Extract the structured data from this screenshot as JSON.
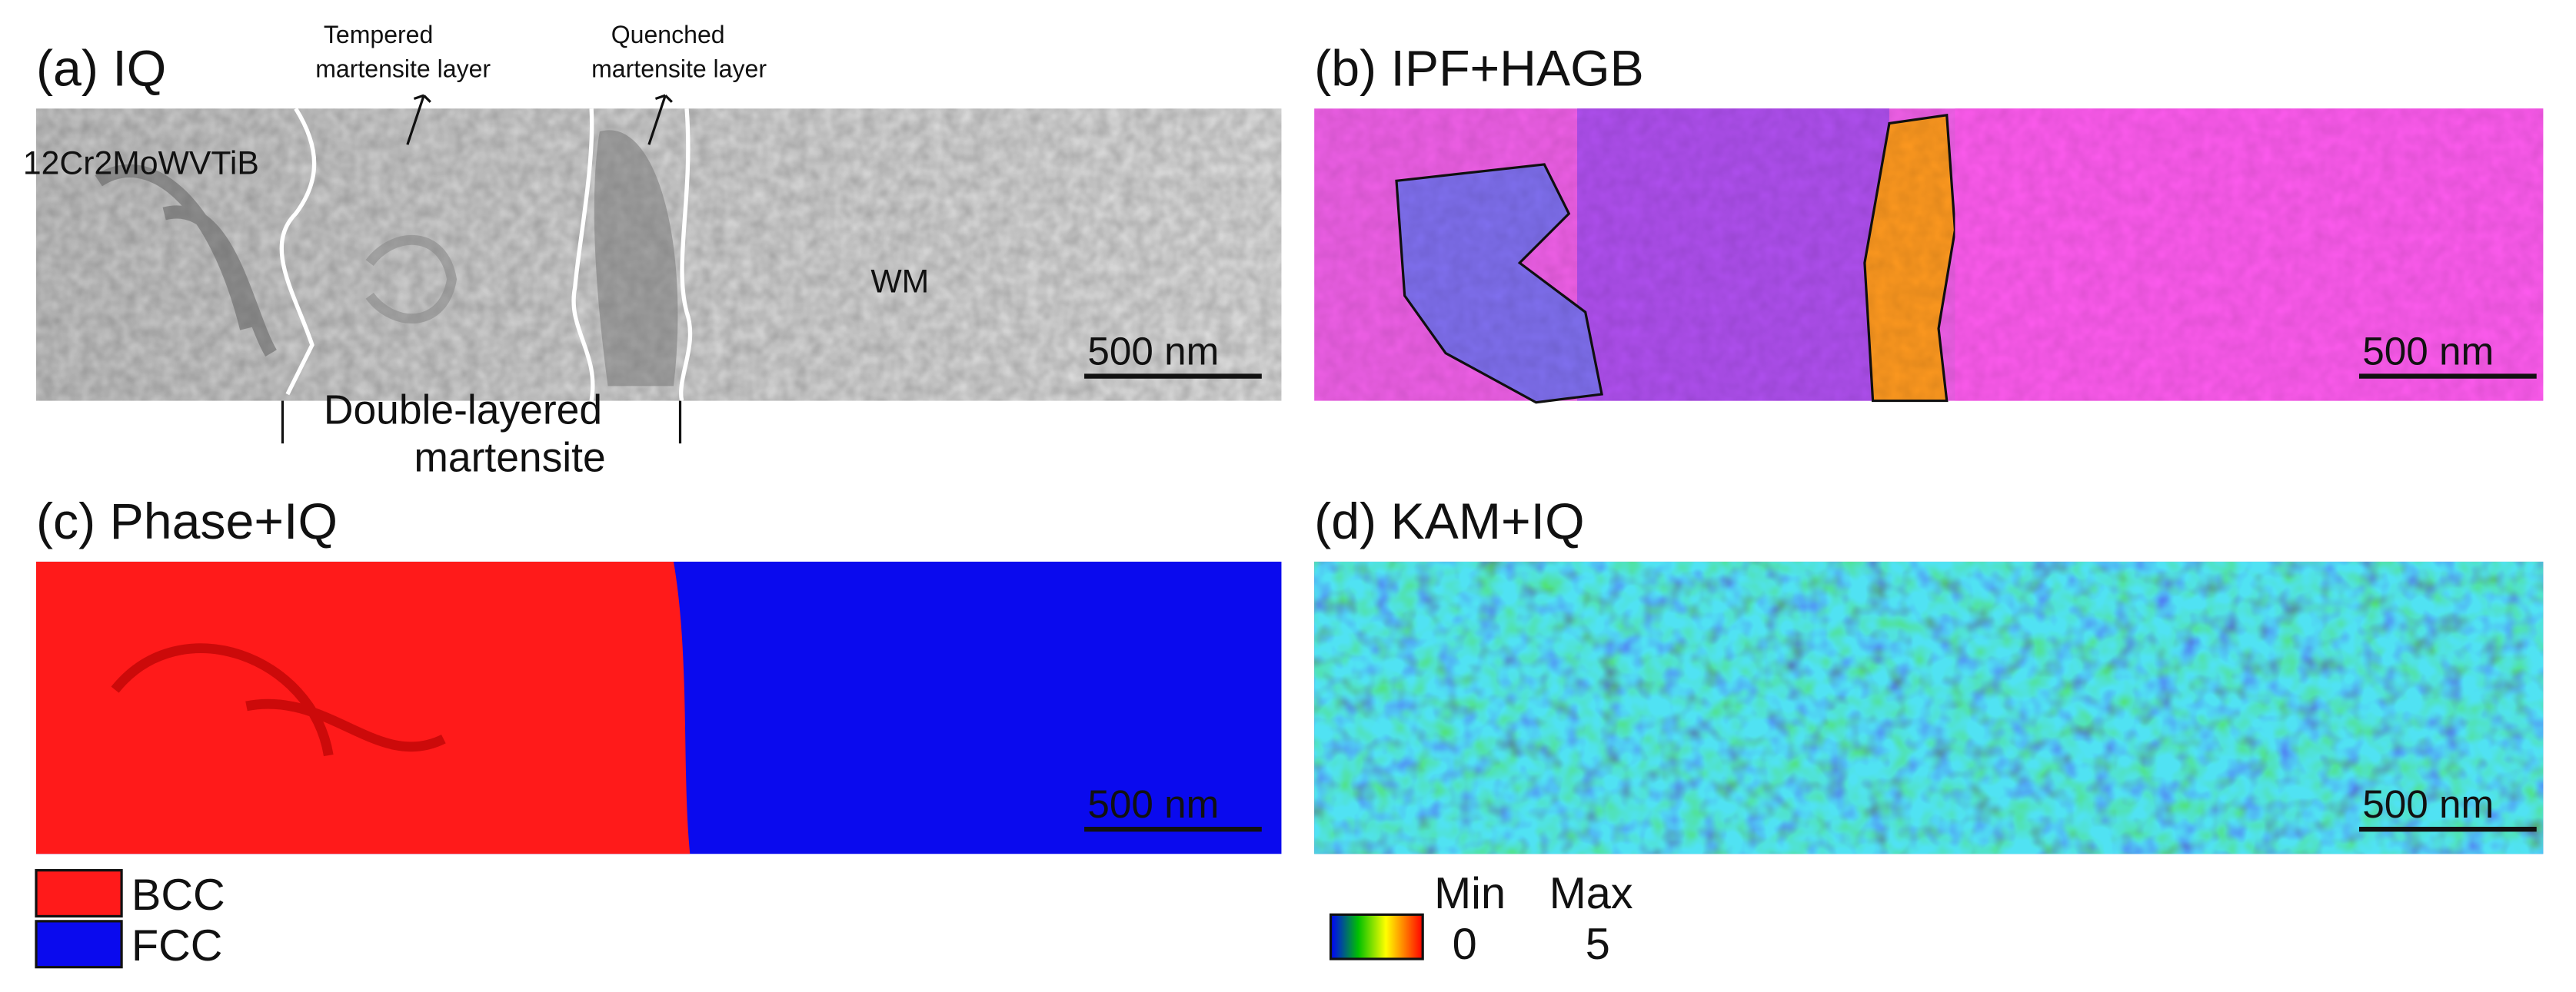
{
  "panels": [
    {
      "label": "(a) IQ",
      "scale_bar": "500 nm",
      "annotations": {
        "tempered": [
          "Tempered",
          "martensite layer"
        ],
        "quenched": [
          "Quenched",
          "martensite layer"
        ],
        "base_metal": "12Cr2MoWVTiB",
        "weld_metal": "WM",
        "double_layered": [
          "Double-layered",
          "martensite"
        ]
      }
    },
    {
      "label": "(b) IPF+HAGB",
      "scale_bar": "500 nm"
    },
    {
      "label": "(c) Phase+IQ",
      "scale_bar": "500 nm"
    },
    {
      "label": "(d) KAM+IQ",
      "scale_bar": "500 nm"
    }
  ],
  "phase_legend": [
    {
      "name": "BCC",
      "color": "#ff1a1a"
    },
    {
      "name": "FCC",
      "color": "#0a0aee"
    }
  ],
  "kam_legend": {
    "min_label": "Min",
    "max_label": "Max",
    "min": 0,
    "max": 5
  }
}
